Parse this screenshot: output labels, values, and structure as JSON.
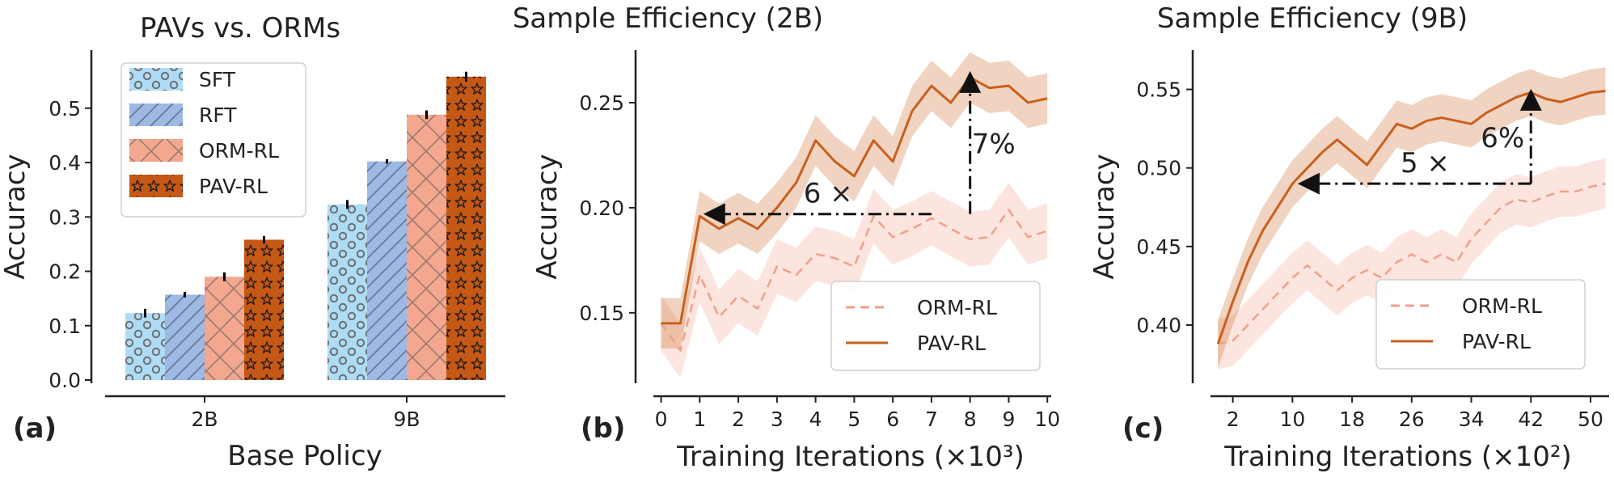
{
  "chart_data": [
    {
      "type": "bar",
      "panel_label": "(a)",
      "title": "PAVs vs. ORMs",
      "xlabel": "Base Policy",
      "ylabel": "Accuracy",
      "categories": [
        "2B",
        "9B"
      ],
      "ylim": [
        0,
        0.58
      ],
      "yticks": [
        "0.0",
        "0.1",
        "0.2",
        "0.3",
        "0.4",
        "0.5"
      ],
      "legend_position": "upper-left",
      "series": [
        {
          "name": "SFT",
          "values": [
            0.123,
            0.323
          ],
          "errors": [
            0.008,
            0.008
          ],
          "color": "#aedcf5",
          "hatch": "circles"
        },
        {
          "name": "RFT",
          "values": [
            0.157,
            0.402
          ],
          "errors": [
            0.005,
            0.004
          ],
          "color": "#9db9e4",
          "hatch": "diagonal"
        },
        {
          "name": "ORM-RL",
          "values": [
            0.19,
            0.488
          ],
          "errors": [
            0.008,
            0.008
          ],
          "color": "#f3a78f",
          "hatch": "cross"
        },
        {
          "name": "PAV-RL",
          "values": [
            0.258,
            0.558
          ],
          "errors": [
            0.007,
            0.009
          ],
          "color": "#c65815",
          "hatch": "stars"
        }
      ]
    },
    {
      "type": "line",
      "panel_label": "(b)",
      "title": "Sample Efficiency (2B)",
      "xlabel": "Training Iterations (×10³)",
      "ylabel": "Accuracy",
      "xlim": [
        -0.2,
        10.1
      ],
      "ylim": [
        0.118,
        0.275
      ],
      "xticks": [
        "0",
        "1",
        "2",
        "3",
        "4",
        "5",
        "6",
        "7",
        "8",
        "9",
        "10"
      ],
      "yticks": [
        "0.15",
        "0.20",
        "0.25"
      ],
      "legend_position": "lower-right",
      "series": [
        {
          "name": "ORM-RL",
          "style": "dashed",
          "color": "#f0a08a",
          "x": [
            0,
            0.5,
            1,
            1.5,
            2,
            2.5,
            3,
            3.5,
            4,
            4.5,
            5,
            5.5,
            6,
            6.5,
            7,
            7.5,
            8,
            8.5,
            9,
            9.5,
            10
          ],
          "y": [
            0.145,
            0.132,
            0.168,
            0.148,
            0.158,
            0.152,
            0.172,
            0.168,
            0.178,
            0.176,
            0.172,
            0.196,
            0.186,
            0.19,
            0.195,
            0.19,
            0.185,
            0.186,
            0.199,
            0.186,
            0.189
          ],
          "band": 0.013
        },
        {
          "name": "PAV-RL",
          "style": "solid",
          "color": "#c8601e",
          "x": [
            0,
            0.5,
            1,
            1.5,
            2,
            2.5,
            3,
            3.5,
            4,
            4.5,
            5,
            5.5,
            6,
            6.5,
            7,
            7.5,
            8,
            8.5,
            9,
            9.5,
            10
          ],
          "y": [
            0.145,
            0.145,
            0.196,
            0.19,
            0.195,
            0.19,
            0.2,
            0.212,
            0.232,
            0.222,
            0.215,
            0.232,
            0.222,
            0.246,
            0.258,
            0.25,
            0.262,
            0.257,
            0.258,
            0.25,
            0.252
          ],
          "band": 0.012
        }
      ],
      "annotations": [
        {
          "text": "6 ×",
          "type": "horizontal-arrow",
          "from": [
            7,
            0.197
          ],
          "to": [
            1.15,
            0.197
          ]
        },
        {
          "text": "7%",
          "type": "vertical-arrow",
          "from": [
            8,
            0.197
          ],
          "to": [
            8,
            0.264
          ]
        }
      ]
    },
    {
      "type": "line",
      "panel_label": "(c)",
      "title": "Sample Efficiency (9B)",
      "xlabel": "Training Iterations (×10²)",
      "ylabel": "Accuracy",
      "xlim": [
        -1,
        52.5
      ],
      "ylim": [
        0.365,
        0.575
      ],
      "xticks": [
        "2",
        "10",
        "18",
        "26",
        "34",
        "42",
        "50"
      ],
      "xtick_values": [
        2,
        10,
        18,
        26,
        34,
        42,
        50
      ],
      "yticks": [
        "0.40",
        "0.45",
        "0.50",
        "0.55"
      ],
      "legend_position": "lower-right",
      "series": [
        {
          "name": "ORM-RL",
          "style": "dashed",
          "color": "#f0a08a",
          "x": [
            0,
            2,
            4,
            6,
            8,
            10,
            12,
            14,
            16,
            18,
            20,
            22,
            24,
            26,
            28,
            30,
            32,
            34,
            36,
            38,
            40,
            42,
            44,
            46,
            48,
            50,
            52
          ],
          "y": [
            0.388,
            0.39,
            0.4,
            0.41,
            0.42,
            0.43,
            0.438,
            0.43,
            0.422,
            0.43,
            0.435,
            0.43,
            0.44,
            0.445,
            0.44,
            0.445,
            0.44,
            0.455,
            0.465,
            0.475,
            0.48,
            0.478,
            0.482,
            0.485,
            0.485,
            0.488,
            0.49
          ],
          "band": 0.016
        },
        {
          "name": "PAV-RL",
          "style": "solid",
          "color": "#c8601e",
          "x": [
            0,
            2,
            4,
            6,
            8,
            10,
            12,
            14,
            16,
            18,
            20,
            22,
            24,
            26,
            28,
            30,
            32,
            34,
            36,
            38,
            40,
            42,
            44,
            46,
            48,
            50,
            52
          ],
          "y": [
            0.388,
            0.415,
            0.44,
            0.46,
            0.475,
            0.49,
            0.5,
            0.51,
            0.518,
            0.51,
            0.502,
            0.515,
            0.528,
            0.525,
            0.53,
            0.532,
            0.53,
            0.528,
            0.535,
            0.54,
            0.545,
            0.548,
            0.544,
            0.542,
            0.545,
            0.548,
            0.549
          ],
          "band": 0.015
        }
      ],
      "annotations": [
        {
          "text": "5 ×",
          "type": "horizontal-arrow",
          "from": [
            42,
            0.49
          ],
          "to": [
            11,
            0.49
          ]
        },
        {
          "text": "6%",
          "type": "vertical-arrow",
          "from": [
            42,
            0.49
          ],
          "to": [
            42,
            0.549
          ]
        }
      ]
    }
  ]
}
